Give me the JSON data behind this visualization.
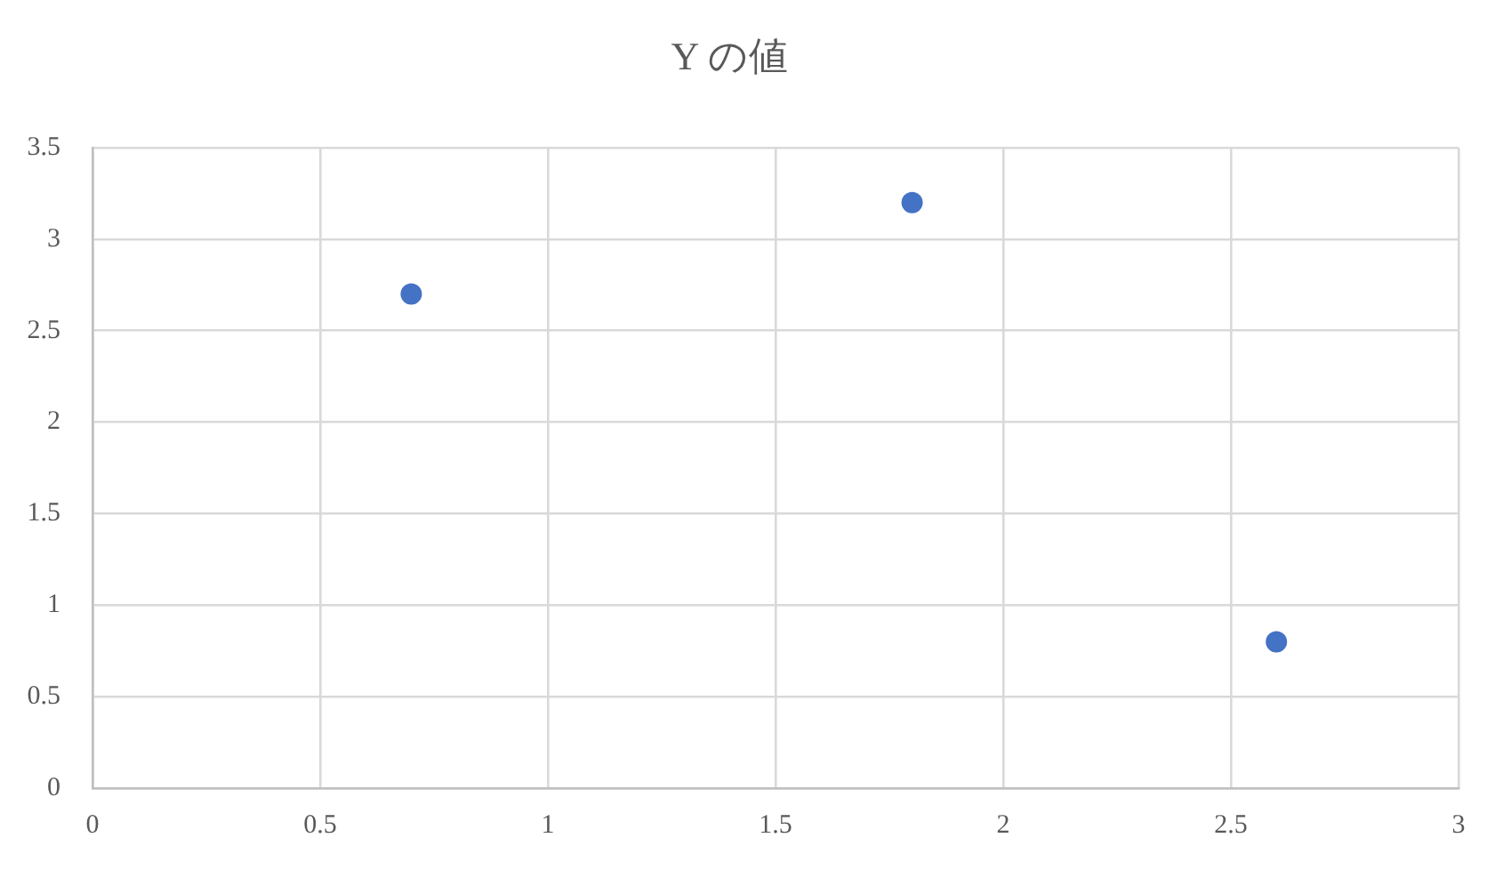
{
  "chart_data": {
    "type": "scatter",
    "title": "Y の値",
    "x": [
      0.7,
      1.8,
      2.6
    ],
    "values": [
      2.7,
      3.2,
      0.8
    ],
    "color": "#4472c4",
    "marker": "circle",
    "xlim": [
      0,
      3
    ],
    "xticks": [
      0,
      0.5,
      1,
      1.5,
      2,
      2.5,
      3
    ],
    "ylim": [
      0,
      3.5
    ],
    "yticks": [
      0,
      0.5,
      1,
      1.5,
      2,
      2.5,
      3,
      3.5
    ],
    "grid": true
  }
}
